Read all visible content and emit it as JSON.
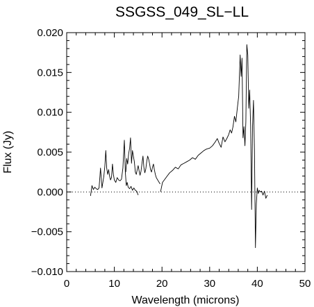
{
  "chart_data": {
    "type": "line",
    "title": "SSGSS_049_SL−LL",
    "xlabel": "Wavelength (microns)",
    "ylabel": "Flux (Jy)",
    "xlim": [
      0,
      50
    ],
    "ylim": [
      -0.01,
      0.02
    ],
    "x_ticks": [
      0,
      10,
      20,
      30,
      40,
      50
    ],
    "x_tick_labels": [
      "0",
      "10",
      "20",
      "30",
      "40",
      "50"
    ],
    "y_ticks": [
      -0.01,
      -0.005,
      0.0,
      0.005,
      0.01,
      0.015,
      0.02
    ],
    "y_tick_labels": [
      "−0.010",
      "−0.005",
      "0.000",
      "0.005",
      "0.010",
      "0.015",
      "0.020"
    ],
    "grid": false,
    "legend": "none",
    "zero_line": {
      "y": 0.0,
      "style": "dotted"
    },
    "line_color": "#000000",
    "series": [
      {
        "segments": [
          {
            "x": [
              5.0,
              5.3,
              5.6,
              5.9,
              6.2,
              6.5,
              6.8,
              7.1,
              7.4,
              7.6,
              7.8,
              8.0,
              8.2,
              8.4,
              8.6,
              8.8,
              9.0,
              9.2,
              9.4,
              9.6,
              9.8,
              10.0,
              10.3,
              10.6,
              10.9,
              11.2,
              11.5,
              11.8,
              12.1,
              12.3,
              12.5,
              12.7,
              12.9,
              13.2,
              13.5,
              13.8,
              14.1,
              14.4,
              14.7,
              15.0
            ],
            "y": [
              -0.0005,
              0.0008,
              0.0003,
              0.0006,
              0.0004,
              0.0003,
              0.0005,
              0.003,
              0.0005,
              0.0012,
              0.002,
              0.0032,
              0.0052,
              0.003,
              0.0022,
              0.0028,
              0.002,
              0.0015,
              0.0018,
              0.0035,
              0.0022,
              0.0015,
              0.0012,
              0.0018,
              0.0015,
              0.0014,
              0.0016,
              0.003,
              0.0065,
              0.0025,
              0.0008,
              0.0012,
              0.0006,
              0.0004,
              0.0007,
              0.0002,
              0.0005,
              0.0002,
              0.0001,
              -0.0004
            ]
          },
          {
            "x": [
              12.4,
              12.6,
              12.8,
              13.0,
              13.2,
              13.4,
              13.6,
              13.8,
              14.0,
              14.2,
              14.4,
              14.6,
              14.8,
              15.0,
              15.2,
              15.4,
              15.6,
              15.8,
              16.0,
              16.2,
              16.4,
              16.6,
              16.8,
              17.0,
              17.2,
              17.4,
              17.6,
              17.8,
              18.0,
              18.2,
              18.4,
              18.6,
              18.8,
              19.0,
              19.2,
              19.4,
              19.6
            ],
            "y": [
              0.0025,
              0.0042,
              0.0035,
              0.0048,
              0.0055,
              0.0068,
              0.0036,
              0.0052,
              0.0045,
              0.0038,
              0.0025,
              0.0022,
              0.0028,
              0.0033,
              0.0026,
              0.0021,
              0.0026,
              0.0036,
              0.0045,
              0.0031,
              0.0024,
              0.0029,
              0.0038,
              0.0045,
              0.0041,
              0.0035,
              0.0028,
              0.0025,
              0.0031,
              0.0035,
              0.0028,
              0.0022,
              0.0018,
              0.0016,
              0.0014,
              0.0012,
              0.001
            ]
          },
          {
            "x": [
              19.7,
              20.1,
              20.6,
              21.1,
              21.6,
              22.2,
              22.8,
              23.4,
              24.0,
              24.6,
              25.2,
              25.8,
              26.4,
              27.0,
              27.6,
              28.2,
              28.8,
              29.4,
              30.0,
              30.6,
              31.2,
              31.6,
              32.0,
              32.4,
              32.8,
              33.2,
              33.6,
              34.0,
              34.3,
              34.6,
              34.9,
              35.2,
              35.5,
              35.8,
              36.1,
              36.4,
              36.6,
              36.8,
              37.0,
              37.2,
              37.4,
              37.6,
              37.8,
              38.0,
              38.2,
              38.4,
              38.6,
              38.8,
              39.0,
              39.2,
              39.4,
              39.6,
              39.8,
              40.0,
              40.2,
              40.4,
              40.6,
              40.9,
              41.2,
              41.5,
              41.8,
              42.1
            ],
            "y": [
              0.0,
              0.0012,
              0.0016,
              0.002,
              0.0024,
              0.0027,
              0.0031,
              0.0029,
              0.0034,
              0.0036,
              0.0038,
              0.004,
              0.0043,
              0.0041,
              0.0046,
              0.0049,
              0.0052,
              0.0054,
              0.0055,
              0.0058,
              0.0063,
              0.0067,
              0.0061,
              0.0056,
              0.0069,
              0.0063,
              0.0067,
              0.0072,
              0.0078,
              0.0074,
              0.0082,
              0.0095,
              0.0088,
              0.0105,
              0.012,
              0.0172,
              0.0145,
              0.0168,
              0.0068,
              0.0082,
              0.0058,
              0.0088,
              0.0185,
              0.0172,
              0.0105,
              0.0128,
              0.0082,
              -0.0022,
              0.0082,
              0.0115,
              0.0052,
              -0.007,
              -0.0015,
              0.0005,
              -0.0002,
              0.0002,
              0.0,
              0.0001,
              -0.0004,
              0.0001,
              -0.0008,
              -0.0004
            ]
          }
        ]
      }
    ]
  }
}
